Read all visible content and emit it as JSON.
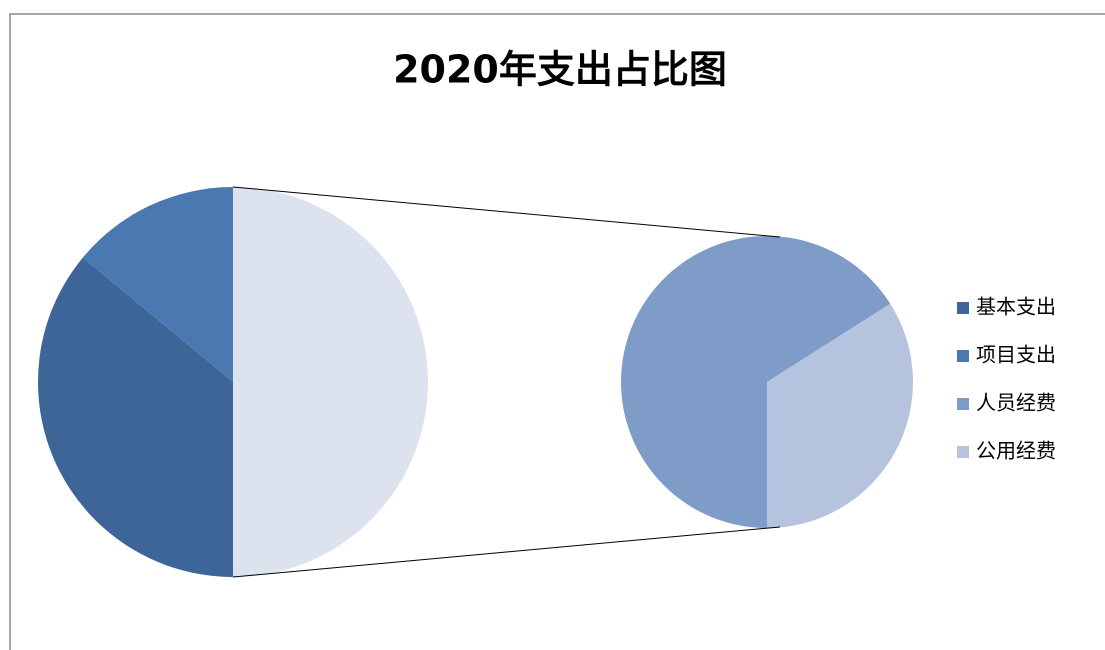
{
  "chart_data": {
    "type": "pie-of-pie",
    "title": "2020年支出占比图",
    "categories": [
      "基本支出",
      "项目支出",
      "人员经费",
      "公用经费"
    ],
    "values": [
      36,
      14,
      33,
      17
    ],
    "colors": [
      "#3d6597",
      "#4a78b0",
      "#7f9cc8",
      "#b5c3de"
    ],
    "secondary_count": 2,
    "other_color": "#dce3ef",
    "legend": "right"
  }
}
